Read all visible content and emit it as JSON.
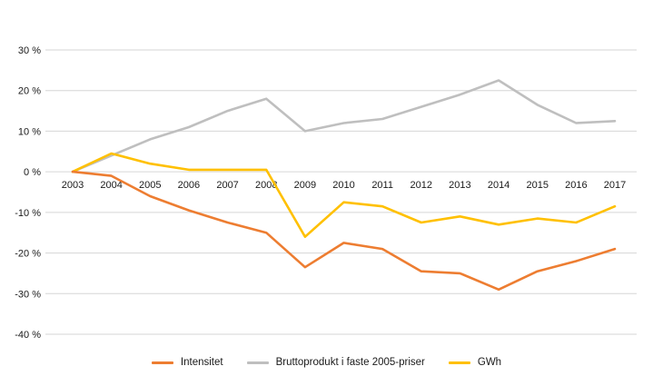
{
  "chart_data": {
    "type": "line",
    "title": "",
    "xlabel": "",
    "ylabel": "",
    "ylim": [
      -40,
      30
    ],
    "grid": true,
    "legend_position": "bottom",
    "categories": [
      "2003",
      "2004",
      "2005",
      "2006",
      "2007",
      "2008",
      "2009",
      "2010",
      "2011",
      "2012",
      "2013",
      "2014",
      "2015",
      "2016",
      "2017"
    ],
    "yticks": [
      30,
      20,
      10,
      0,
      -10,
      -20,
      -30,
      -40
    ],
    "ytick_labels": [
      "30 %",
      "20 %",
      "10 %",
      "0 %",
      "-10 %",
      "-20 %",
      "-30 %",
      "-40 %"
    ],
    "series": [
      {
        "name": "Intensitet",
        "color": "#ED7D31",
        "values": [
          0,
          -1,
          -6,
          -9.5,
          -12.5,
          -15,
          -23.5,
          -17.5,
          -19,
          -24.5,
          -25,
          -29,
          -24.5,
          -22,
          -19
        ]
      },
      {
        "name": "Bruttoprodukt i faste 2005-priser",
        "color": "#BFBFBF",
        "values": [
          0,
          4,
          8,
          11,
          15,
          18,
          10,
          12,
          13,
          16,
          19,
          22.5,
          16.5,
          12,
          12.5
        ]
      },
      {
        "name": "GWh",
        "color": "#FFC000",
        "values": [
          0,
          4.5,
          2,
          0.5,
          0.5,
          0.5,
          -16,
          -7.5,
          -8.5,
          -12.5,
          -11,
          -13,
          -11.5,
          -12.5,
          -8.5
        ]
      }
    ]
  },
  "colors": {
    "gridline": "#D6D6D6",
    "axis_text": "#1a1a1a",
    "background": "#FFFFFF"
  }
}
